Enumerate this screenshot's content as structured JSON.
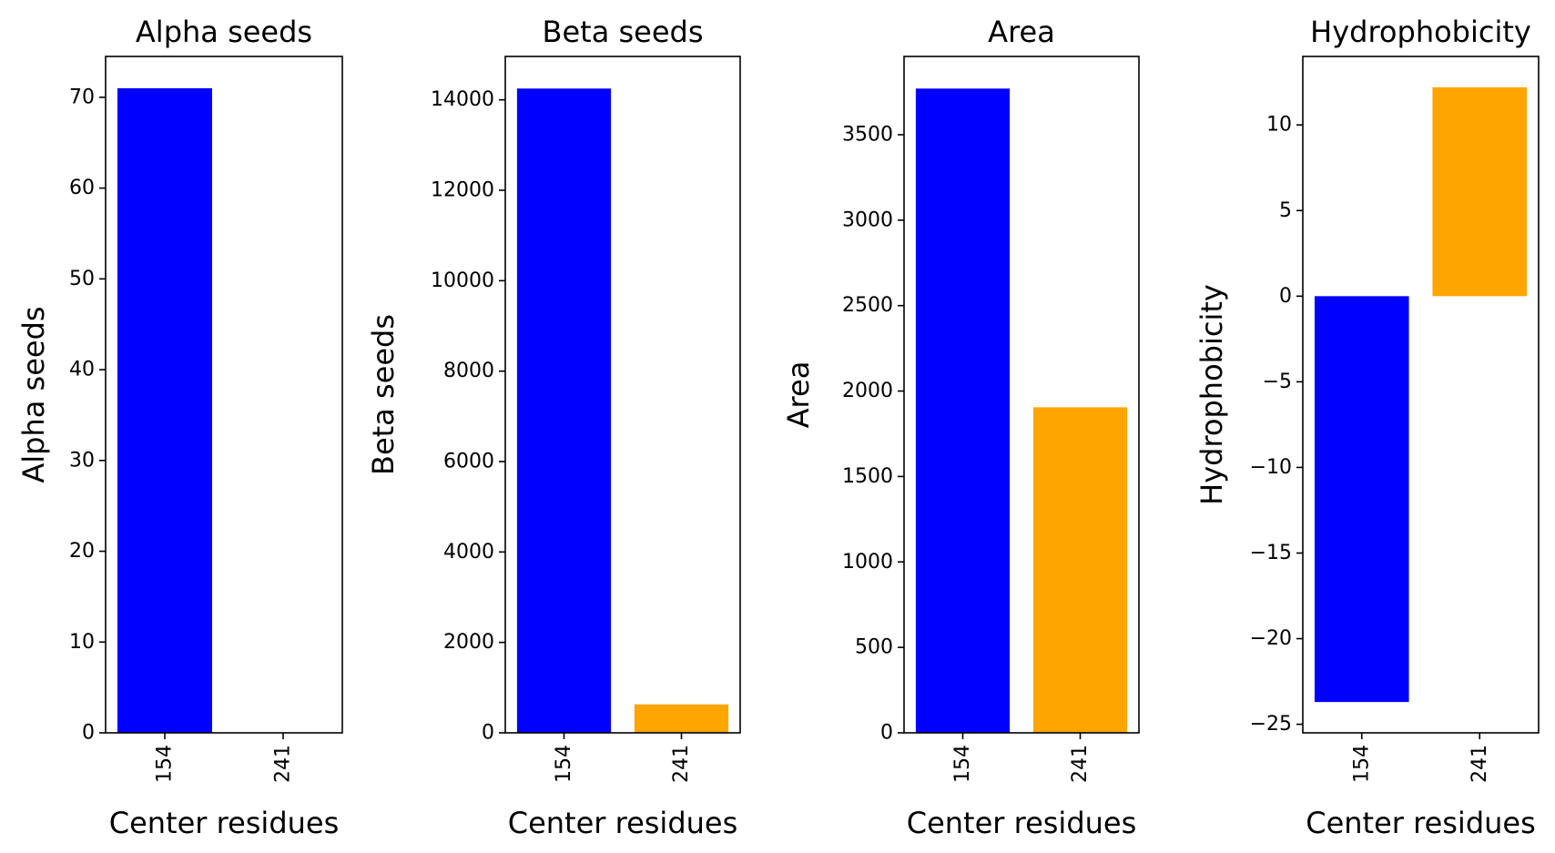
{
  "chart_data": [
    {
      "type": "bar",
      "title": "Alpha seeds",
      "xlabel": "Center residues",
      "ylabel": "Alpha seeds",
      "categories": [
        "154",
        "241"
      ],
      "values": [
        71,
        0
      ],
      "colors": [
        "#0000ff",
        "#ffa500"
      ],
      "ylim": [
        0,
        74.5
      ],
      "yticks": [
        0,
        10,
        20,
        30,
        40,
        50,
        60,
        70
      ],
      "ytick_labels": [
        "0",
        "10",
        "20",
        "30",
        "40",
        "50",
        "60",
        "70"
      ],
      "grid": false
    },
    {
      "type": "bar",
      "title": "Beta seeds",
      "xlabel": "Center residues",
      "ylabel": "Beta seeds",
      "categories": [
        "154",
        "241"
      ],
      "values": [
        14250,
        630
      ],
      "colors": [
        "#0000ff",
        "#ffa500"
      ],
      "ylim": [
        0,
        14960
      ],
      "yticks": [
        0,
        2000,
        4000,
        6000,
        8000,
        10000,
        12000,
        14000
      ],
      "ytick_labels": [
        "0",
        "2000",
        "4000",
        "6000",
        "8000",
        "10000",
        "12000",
        "14000"
      ],
      "grid": false
    },
    {
      "type": "bar",
      "title": "Area",
      "xlabel": "Center residues",
      "ylabel": "Area",
      "categories": [
        "154",
        "241"
      ],
      "values": [
        3770,
        1905
      ],
      "colors": [
        "#0000ff",
        "#ffa500"
      ],
      "ylim": [
        0,
        3958
      ],
      "yticks": [
        0,
        500,
        1000,
        1500,
        2000,
        2500,
        3000,
        3500
      ],
      "ytick_labels": [
        "0",
        "500",
        "1000",
        "1500",
        "2000",
        "2500",
        "3000",
        "3500"
      ],
      "grid": false
    },
    {
      "type": "bar",
      "title": "Hydrophobicity",
      "xlabel": "Center residues",
      "ylabel": "Hydrophobicity",
      "categories": [
        "154",
        "241"
      ],
      "values": [
        -23.7,
        12.2
      ],
      "colors": [
        "#0000ff",
        "#ffa500"
      ],
      "ylim": [
        -25.5,
        14.0
      ],
      "yticks": [
        -25,
        -20,
        -15,
        -10,
        -5,
        0,
        5,
        10
      ],
      "ytick_labels": [
        "−25",
        "−20",
        "−15",
        "−10",
        "−5",
        "0",
        "5",
        "10"
      ],
      "grid": false
    }
  ]
}
